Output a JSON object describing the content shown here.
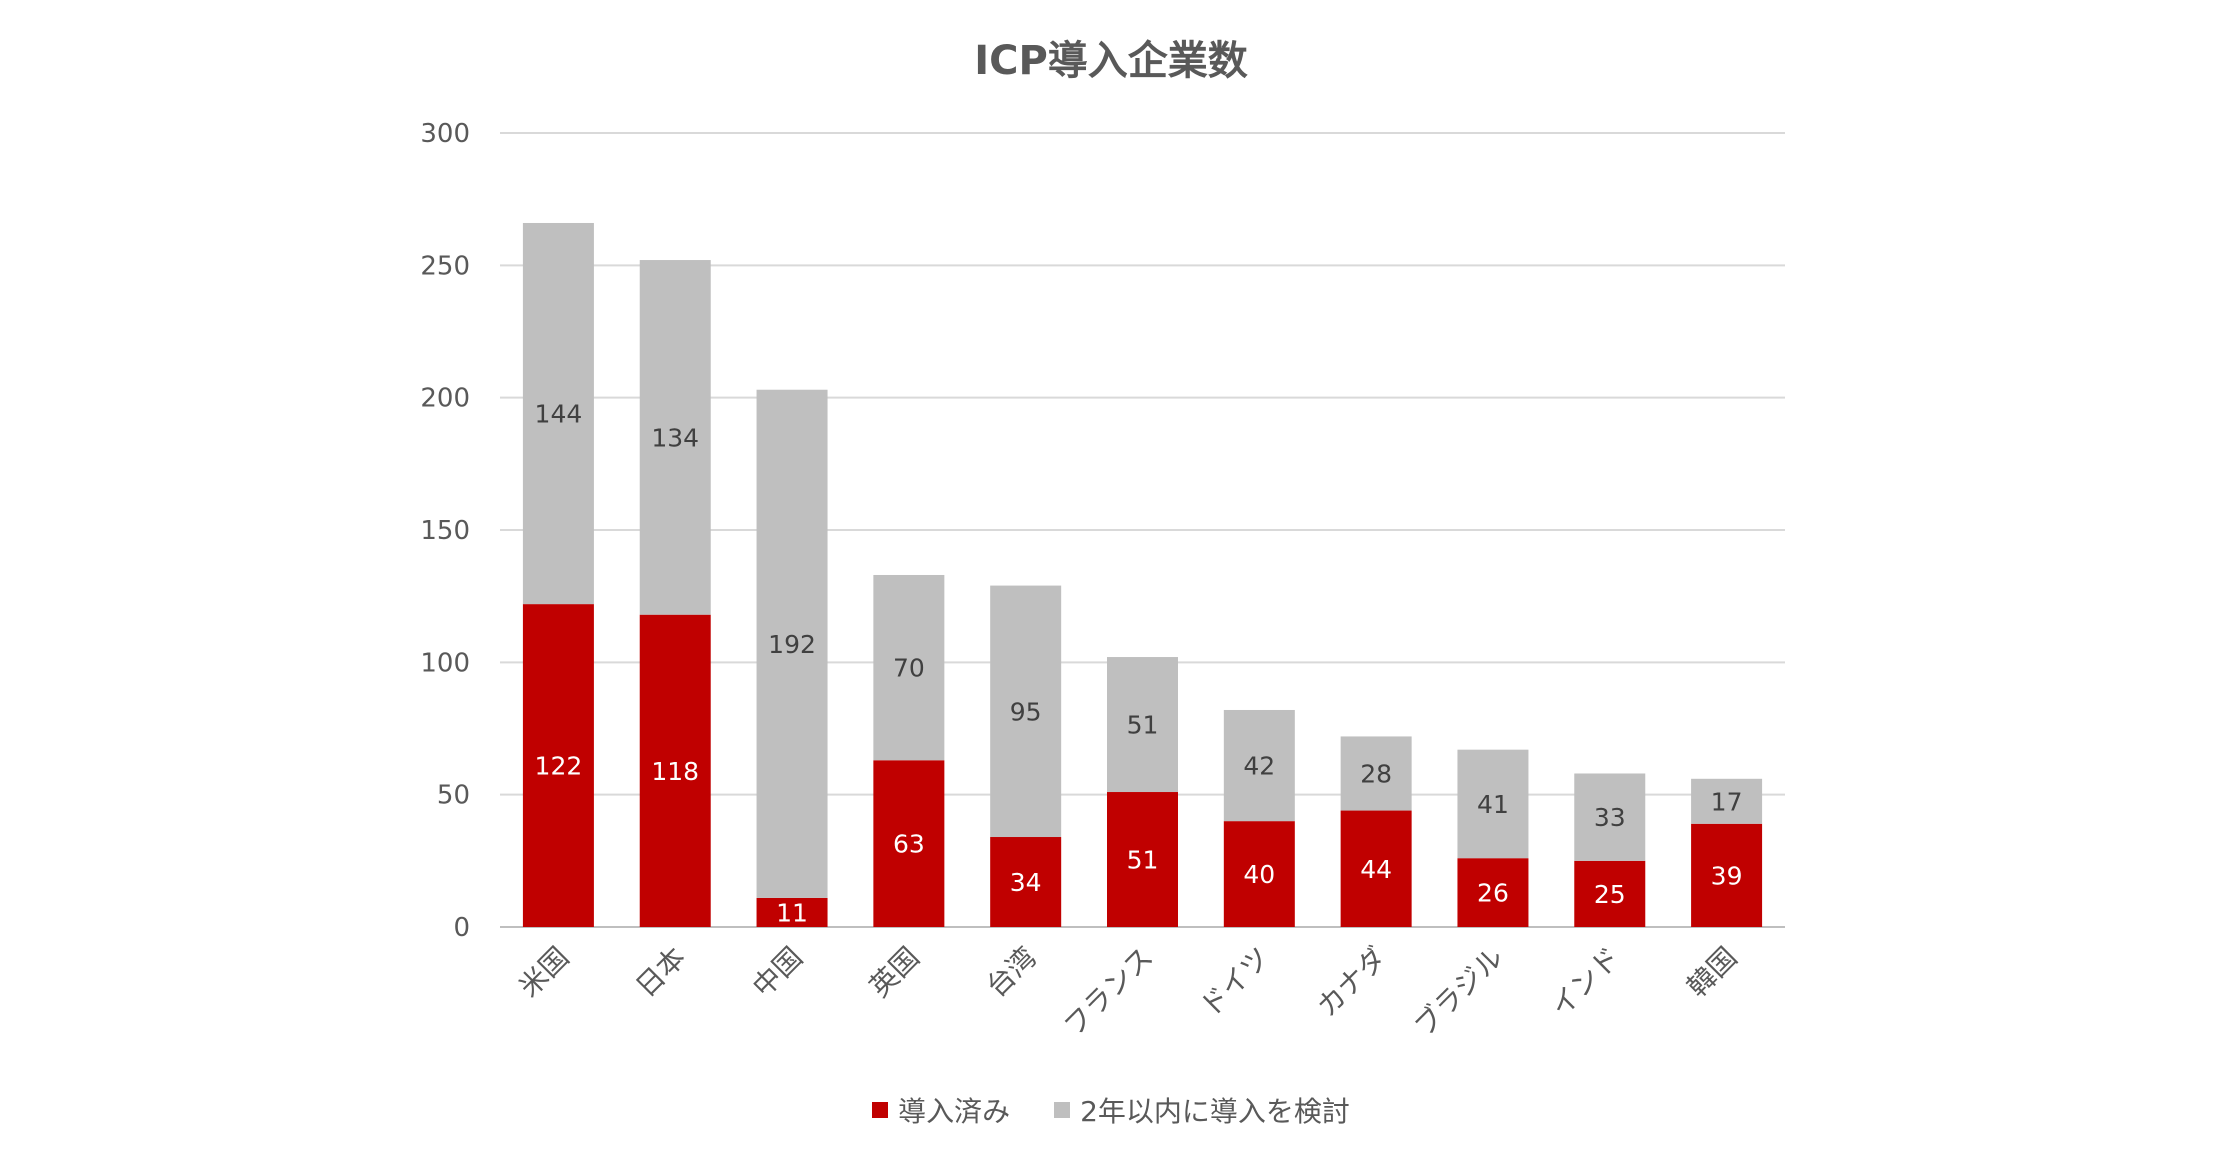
{
  "chart_data": {
    "type": "bar",
    "stacked": true,
    "title": "ICP導入企業数",
    "xlabel": "",
    "ylabel": "",
    "ylim": [
      0,
      300
    ],
    "yticks": [
      0,
      50,
      100,
      150,
      200,
      250,
      300
    ],
    "grid": true,
    "legend_position": "bottom",
    "categories": [
      "米国",
      "日本",
      "中国",
      "英国",
      "台湾",
      "フランス",
      "ドイツ",
      "カナダ",
      "ブラジル",
      "インド",
      "韓国"
    ],
    "series": [
      {
        "name": "導入済み",
        "color": "#c00000",
        "label_color": "#ffffff",
        "values": [
          122,
          118,
          11,
          63,
          34,
          51,
          40,
          44,
          26,
          25,
          39
        ]
      },
      {
        "name": "2年以内に導入を検討",
        "color": "#bfbfbf",
        "label_color": "#404040",
        "values": [
          144,
          134,
          192,
          70,
          95,
          51,
          42,
          28,
          41,
          33,
          17
        ]
      }
    ]
  }
}
